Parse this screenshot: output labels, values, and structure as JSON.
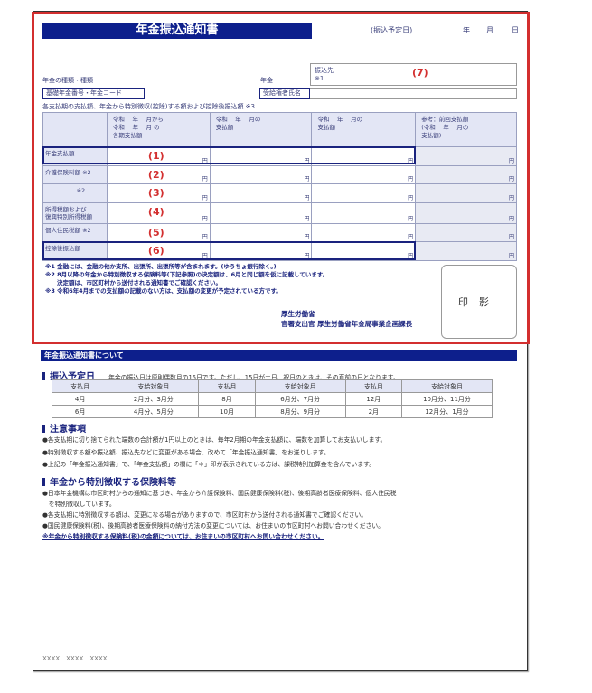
{
  "notice": {
    "title": "年金振込通知書",
    "scheduled_date_label": "(振込予定日)",
    "year": "年",
    "month": "月",
    "day": "日",
    "pension_type_label": "年金の種類・種類",
    "pension_label": "年金",
    "payee_label": "振込先",
    "payee_note": "※1",
    "payee_marker": "(7)",
    "basic_number_label": "基礎年金番号・年金コード",
    "recipient_label": "受給権者氏名",
    "table_caption": "各支払期の支払額、年金から特別徴収(控除)する額および控除後振込額 ※3",
    "headers": [
      "",
      "令和　 年　 月から\n令和　 年　 月 の\n各期支払額",
      "令和　 年　 月の\n支払額",
      "令和　 年　 月の\n支払額",
      "参考：前回支払額\n(令和　 年　 月の\n支払額)"
    ],
    "yen": "円",
    "rows": [
      {
        "label": "年金支払額",
        "marker": "(1)"
      },
      {
        "label": "介護保険料額 ※2",
        "marker": "(2)"
      },
      {
        "label": "　　　　　 ※2",
        "marker": "(3)"
      },
      {
        "label": "所得税額および\n復興特別所得税額",
        "marker": "(4)"
      },
      {
        "label": "個人住民税額 ※2",
        "marker": "(5)"
      },
      {
        "label": "控除後振込額",
        "marker": "(6)"
      }
    ],
    "notes": [
      "※1 金融には、金融の他か支所、出張所、出張所等が含まれます。(ゆうちょ銀行除く。)",
      "※2 8月以降の年金から特別徴収する保険料等(下記参照)の決定額は、6月と同じ額を仮に記載しています。",
      "　　決定額は、市区町村から送付される通知書でご確認ください。",
      "※3 令和6年4月までの支払額の記載のない方は、支払額の変更が予定されている方です。"
    ],
    "issuer_line1": "厚生労働省",
    "issuer_line2": "官署支出官 厚生労働省年金局事業企画課長",
    "stamp": "印影"
  },
  "about": {
    "bar_title": "年金振込通知書について",
    "schedule_heading": "振込予定日",
    "schedule_text": "年金の振込日は原則偶数月の15日です。ただし、15日が土日、祝日のときは、その直前の日となります。",
    "schedule_table": [
      [
        "支払月",
        "支給対象月",
        "支払月",
        "支給対象月",
        "支払月",
        "支給対象月"
      ],
      [
        "4月",
        "2月分、3月分",
        "8月",
        "6月分、7月分",
        "12月",
        "10月分、11月分"
      ],
      [
        "6月",
        "4月分、5月分",
        "10月",
        "8月分、9月分",
        "2月",
        "12月分、1月分"
      ]
    ],
    "caution_heading": "注意事項",
    "cautions": [
      "●各支払期に切り捨てられた端数の合計額が1円以上のときは、毎年2月期の年金支払額に、端数を加算してお支払いします。",
      "●特別徴収する額や振込額、振込先などに変更がある場合、改めて「年金振込通知書」をお送りします。",
      "●上記の「年金振込通知書」で、「年金支払額」の欄に「＊」印が表示されている方は、課税特別加算金を含んでいます。"
    ],
    "deduction_heading": "年金から特別徴収する保険料等",
    "deductions": [
      "●日本年金機構は市区町村からの通知に基づき、年金から介護保険料、国民健康保険料(税)、後期高齢者医療保険料、個人住民税",
      "　を特別徴収しています。",
      "●各支払期に特別徴収する額は、変更になる場合がありますので、市区町村から送付される通知書でご確認ください。",
      "●国民健康保険料(税)、後期高齢者医療保険料の納付方法の変更については、お住まいの市区町村へお問い合わせください。"
    ],
    "final_note": "※年金から特別徴収する保険料(税)の金額については、お住まいの市区町村へお問い合わせください。"
  },
  "footer": "XXXX　XXXX　XXXX",
  "colors": {
    "navy": "#0d1f8c",
    "highlight": "#d32f2f",
    "header_fill": "#e3e6f5"
  }
}
